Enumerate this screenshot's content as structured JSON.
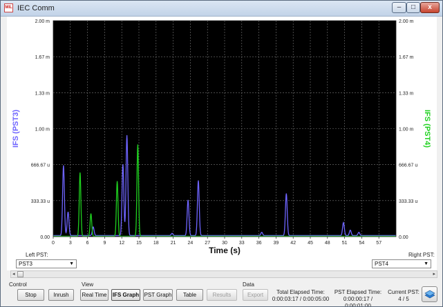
{
  "window": {
    "title": "IEC Comm",
    "icon_text": "MIL",
    "minimize": "–",
    "maximize": "□",
    "close": "x"
  },
  "chart_data": {
    "type": "line",
    "xlabel": "Time (s)",
    "ylabel_left": "IFS (PST3)",
    "ylabel_right": "IFS (PST4)",
    "xlim": [
      0,
      60
    ],
    "ylim": [
      0,
      0.002
    ],
    "x_ticks": [
      "0",
      "3",
      "6",
      "9",
      "12",
      "15",
      "18",
      "21",
      "24",
      "27",
      "30",
      "33",
      "36",
      "39",
      "42",
      "45",
      "48",
      "51",
      "54",
      "57"
    ],
    "y_ticks_left": [
      "0.00",
      "333.33 u",
      "666.67 u",
      "1.00 m",
      "1.33 m",
      "1.67 m",
      "2.00 m"
    ],
    "y_ticks_right": [
      "0.00",
      "333.33 u",
      "666.67 u",
      "1.00 m",
      "1.33 m",
      "1.67 m",
      "2.00 m"
    ],
    "grid": true,
    "series": [
      {
        "name": "IFS (PST3)",
        "color": "#6e64ff",
        "peaks": [
          [
            1.8,
            0.00065
          ],
          [
            2.6,
            0.00022
          ],
          [
            7.0,
            8e-05
          ],
          [
            12.2,
            0.00066
          ],
          [
            12.9,
            0.00093
          ],
          [
            20.8,
            2e-05
          ],
          [
            23.6,
            0.00033
          ],
          [
            25.4,
            0.00051
          ],
          [
            36.5,
            3e-05
          ],
          [
            40.8,
            0.00039
          ],
          [
            50.8,
            0.00012
          ],
          [
            52.0,
            5e-05
          ],
          [
            53.5,
            3e-05
          ]
        ]
      },
      {
        "name": "IFS (PST4)",
        "color": "#1fd11f",
        "peaks": [
          [
            4.7,
            0.00059
          ],
          [
            6.6,
            0.00021
          ],
          [
            11.2,
            0.00051
          ],
          [
            14.8,
            0.00085
          ]
        ]
      }
    ]
  },
  "left_pst": {
    "label": "Left PST:",
    "value": "PST3"
  },
  "right_pst": {
    "label": "Right PST:",
    "value": "PST4"
  },
  "groups": {
    "control": "Control",
    "view": "View",
    "data": "Data"
  },
  "buttons": {
    "stop": "Stop",
    "inrush": "Inrush",
    "real_time": "Real Time",
    "ifs_graph": "IFS Graph",
    "pst_graph": "PST Graph",
    "table": "Table",
    "results": "Results",
    "export": "Export"
  },
  "status": {
    "total_label": "Total Elapsed Time:",
    "total_value": "0:00:03:17 / 0:00:05:00",
    "pst_label": "PST Elapsed Time:",
    "pst_value": "0:00:00:17 / 0:00:01:00",
    "current_label": "Current PST:",
    "current_value": "4 / 5"
  }
}
